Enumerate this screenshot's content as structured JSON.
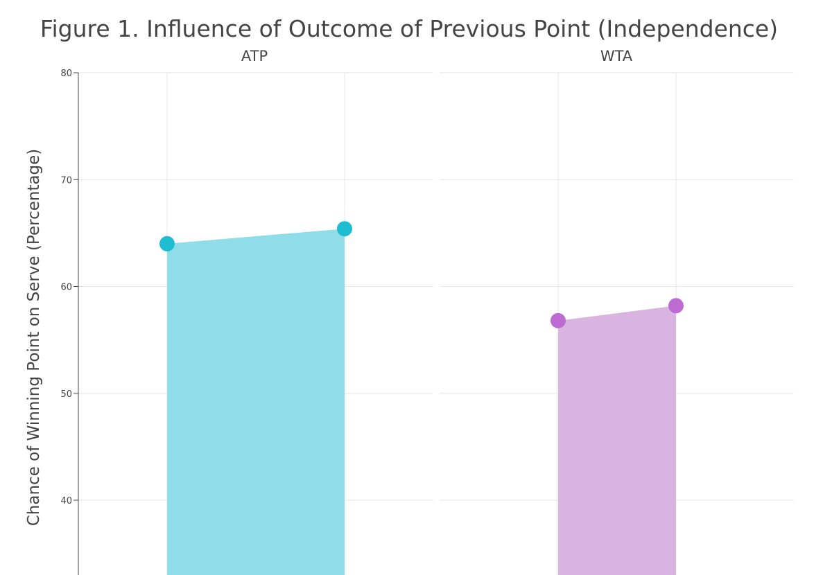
{
  "chart_data": {
    "type": "area",
    "title": "Figure 1. Influence of Outcome of Previous Point (Independence)",
    "ylabel": "Chance of Winning Point on Serve (Percentage)",
    "ylim": [
      33,
      80
    ],
    "yticks": [
      40,
      50,
      60,
      70,
      80
    ],
    "grid": true,
    "panels": [
      {
        "name": "ATP",
        "color": "#1fbcd2",
        "fill": "#8edde9",
        "x": [
          0,
          1
        ],
        "values": [
          64.0,
          65.4
        ]
      },
      {
        "name": "WTA",
        "color": "#bd6bd2",
        "fill": "#dab4e0",
        "x": [
          0,
          1
        ],
        "values": [
          56.8,
          58.2
        ]
      }
    ]
  }
}
